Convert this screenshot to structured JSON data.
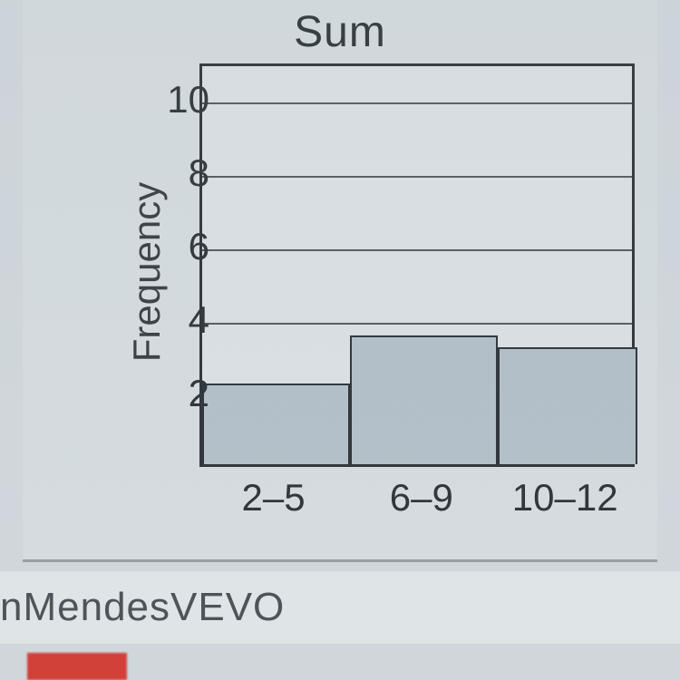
{
  "chart": {
    "type": "histogram",
    "title": "Sum",
    "ylabel": "Frequency",
    "ylim": [
      0,
      11
    ],
    "yticks": [
      2,
      4,
      6,
      8,
      10
    ],
    "grid_color": "#3a3f43",
    "border_color": "#2a2f33",
    "bar_fill": "#b8c4cc",
    "background": "#e3e7e9",
    "categories": [
      "2–5",
      "6–9",
      "10–12"
    ],
    "values": [
      2.2,
      3.5,
      3.2
    ],
    "bar_widths": [
      0.34,
      0.34,
      0.32
    ],
    "bar_lefts": [
      0.0,
      0.34,
      0.68
    ]
  },
  "bottom": {
    "text": "nMendesVEVO"
  }
}
